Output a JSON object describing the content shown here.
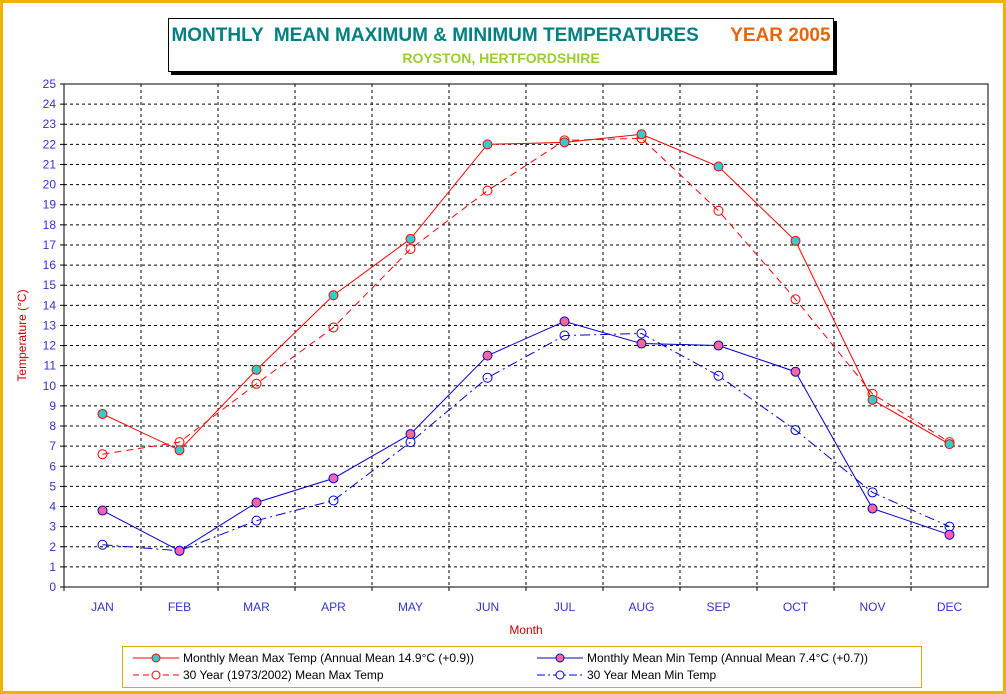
{
  "title": {
    "main": "MONTHLY  MEAN MAXIMUM & MINIMUM TEMPERATURES",
    "year": "YEAR 2005",
    "subtitle": "ROYSTON, HERTFORDSHIRE"
  },
  "colors": {
    "frame": "#f0b400",
    "title": "#008080",
    "year": "#e8650a",
    "subtitle": "#9acd32",
    "max_series": "#ff0000",
    "min_series": "#0000cc",
    "max_marker": "#33cccc",
    "min_marker": "#ff6699",
    "axis_text": "#3333cc",
    "axis_title": "#cc0000"
  },
  "chart_data": {
    "type": "line",
    "xlabel": "Month",
    "ylabel": "Temperature (°C)",
    "ylim": [
      0,
      25
    ],
    "y_ticks": [
      0,
      1,
      2,
      3,
      4,
      5,
      6,
      7,
      8,
      9,
      10,
      11,
      12,
      13,
      14,
      15,
      16,
      17,
      18,
      19,
      20,
      21,
      22,
      23,
      24,
      25
    ],
    "grid": true,
    "legend_position": "bottom",
    "categories": [
      "JAN",
      "FEB",
      "MAR",
      "APR",
      "MAY",
      "JUN",
      "JUL",
      "AUG",
      "SEP",
      "OCT",
      "NOV",
      "DEC"
    ],
    "series": [
      {
        "name": "Monthly Mean Max Temp (Annual Mean 14.9°C (+0.9))",
        "style": "solid",
        "color": "#ff0000",
        "marker_fill": "#33cccc",
        "values": [
          8.6,
          6.8,
          10.8,
          14.5,
          17.3,
          22.0,
          22.1,
          22.5,
          20.9,
          17.2,
          9.3,
          7.1
        ]
      },
      {
        "name": "Monthly Mean Min Temp (Annual Mean 7.4°C (+0.7))",
        "style": "solid",
        "color": "#0000cc",
        "marker_fill": "#ff6699",
        "values": [
          3.8,
          1.8,
          4.2,
          5.4,
          7.6,
          11.5,
          13.2,
          12.1,
          12.0,
          10.7,
          3.9,
          2.6
        ]
      },
      {
        "name": "30 Year (1973/2002) Mean Max Temp",
        "style": "dashed",
        "color": "#ff0000",
        "marker_fill": "none",
        "values": [
          6.6,
          7.2,
          10.1,
          12.9,
          16.8,
          19.7,
          22.2,
          22.3,
          18.7,
          14.3,
          9.6,
          7.2
        ]
      },
      {
        "name": "30 Year Mean Min Temp",
        "style": "dashdot",
        "color": "#0000cc",
        "marker_fill": "none",
        "values": [
          2.1,
          1.8,
          3.3,
          4.3,
          7.2,
          10.4,
          12.5,
          12.6,
          10.5,
          7.8,
          4.7,
          3.0
        ]
      }
    ]
  }
}
